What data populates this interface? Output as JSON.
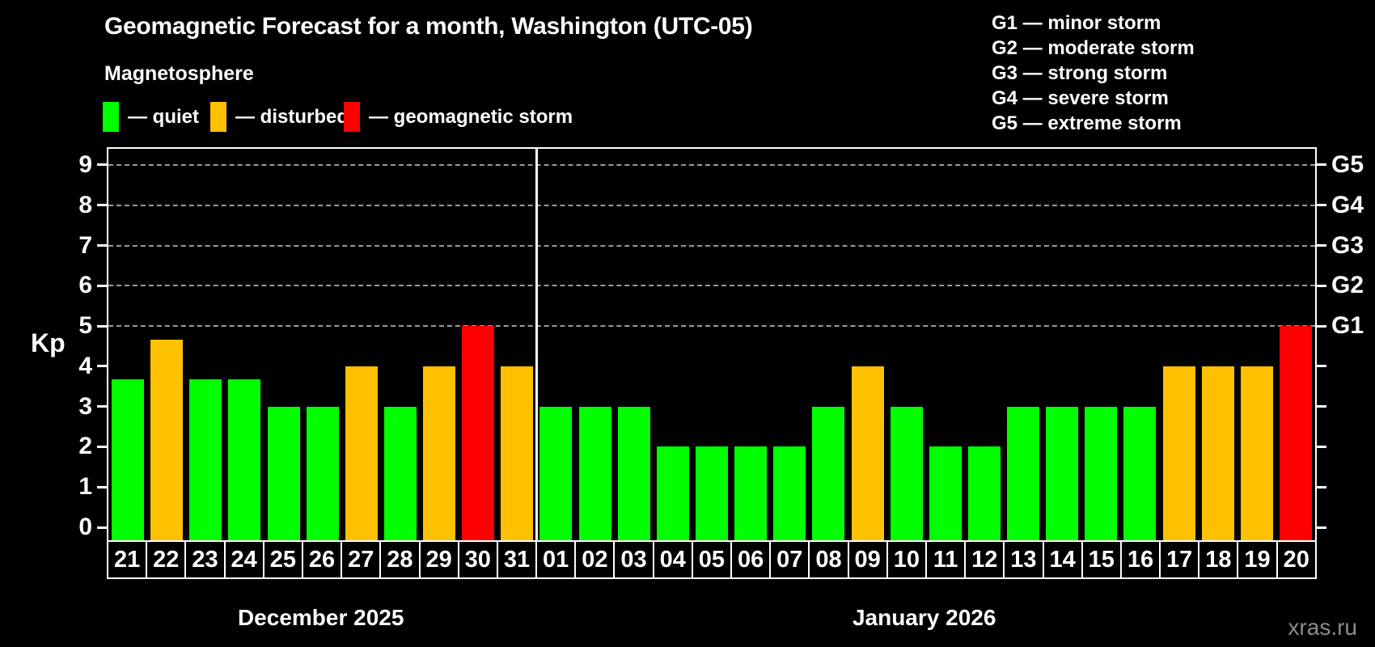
{
  "header": {
    "title": "Geomagnetic Forecast for a month, Washington (UTC-05)",
    "subtitle": "Magnetosphere"
  },
  "legend": {
    "items": [
      {
        "key": "quiet",
        "label": "— quiet"
      },
      {
        "key": "disturbed",
        "label": "— disturbed"
      },
      {
        "key": "storm",
        "label": "— geomagnetic storm"
      }
    ]
  },
  "storm_scale_legend": {
    "lines": [
      "G1 — minor storm",
      "G2 — moderate storm",
      "G3 — strong storm",
      "G4 — severe storm",
      "G5 — extreme storm"
    ]
  },
  "colors": {
    "quiet": "#00ff00",
    "disturbed": "#ffc000",
    "storm": "#ff0000",
    "background": "#000000",
    "text": "#ffffff",
    "grid": "#9a9a9a",
    "watermark": "#8c8c8c"
  },
  "chart_data": {
    "type": "bar",
    "ylabel": "Kp",
    "ylim": [
      -0.36,
      9.4
    ],
    "grid_on": true,
    "grid_levels": [
      5,
      6,
      7,
      8,
      9
    ],
    "left_ticks": [
      0,
      1,
      2,
      3,
      4,
      5,
      6,
      7,
      8,
      9
    ],
    "right_ticks": [
      {
        "value": 5,
        "label": "G1"
      },
      {
        "value": 6,
        "label": "G2"
      },
      {
        "value": 7,
        "label": "G3"
      },
      {
        "value": 8,
        "label": "G4"
      },
      {
        "value": 9,
        "label": "G5"
      }
    ],
    "groups": [
      {
        "month": "December 2025",
        "days": [
          "21",
          "22",
          "23",
          "24",
          "25",
          "26",
          "27",
          "28",
          "29",
          "30",
          "31"
        ],
        "values": [
          3.67,
          4.67,
          3.67,
          3.67,
          3,
          3,
          4,
          3,
          4,
          5,
          4
        ],
        "status": [
          "quiet",
          "disturbed",
          "quiet",
          "quiet",
          "quiet",
          "quiet",
          "disturbed",
          "quiet",
          "disturbed",
          "storm",
          "disturbed"
        ]
      },
      {
        "month": "January 2026",
        "days": [
          "01",
          "02",
          "03",
          "04",
          "05",
          "06",
          "07",
          "08",
          "09",
          "10",
          "11",
          "12",
          "13",
          "14",
          "15",
          "16",
          "17",
          "18",
          "19",
          "20"
        ],
        "values": [
          3,
          3,
          3,
          2,
          2,
          2,
          2,
          3,
          4,
          3,
          2,
          2,
          3,
          3,
          3,
          3,
          4,
          4,
          4,
          5
        ],
        "status": [
          "quiet",
          "quiet",
          "quiet",
          "quiet",
          "quiet",
          "quiet",
          "quiet",
          "quiet",
          "disturbed",
          "quiet",
          "quiet",
          "quiet",
          "quiet",
          "quiet",
          "quiet",
          "quiet",
          "disturbed",
          "disturbed",
          "disturbed",
          "storm"
        ]
      }
    ]
  },
  "watermark": "xras.ru"
}
